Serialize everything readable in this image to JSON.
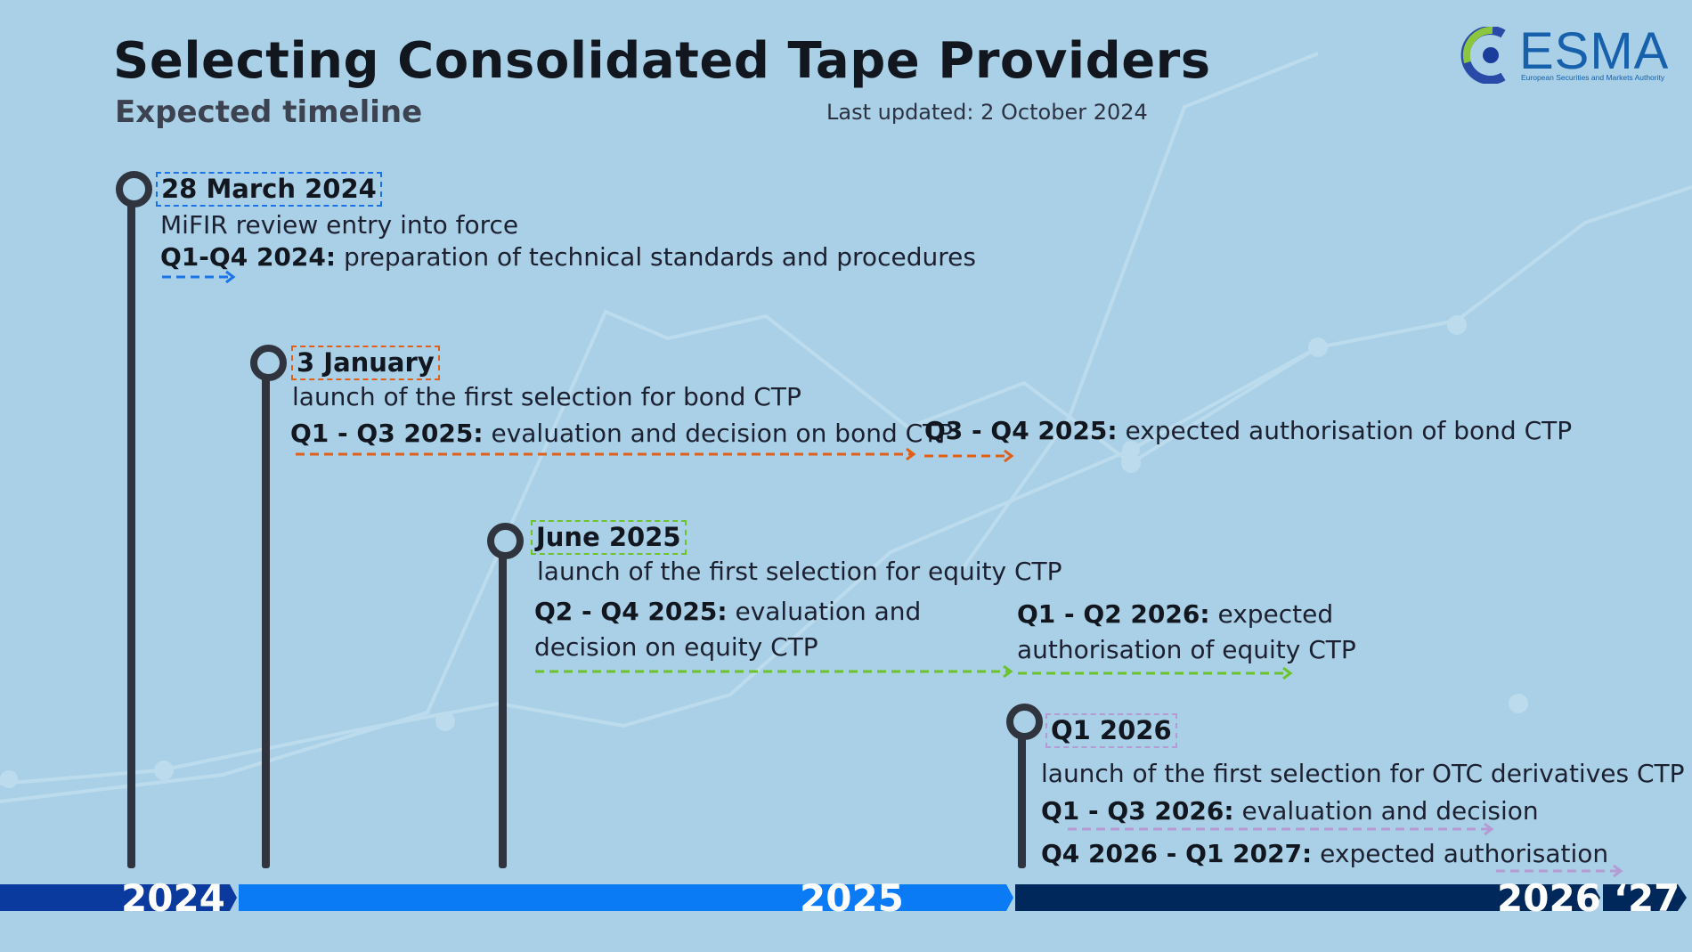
{
  "header": {
    "title": "Selecting Consolidated Tape Providers",
    "subtitle": "Expected timeline",
    "last_updated": "Last updated: 2 October 2024"
  },
  "logo": {
    "name": "ESMA",
    "tagline": "European Securities and Markets Authority"
  },
  "colors": {
    "background": "#a9d0e6",
    "stem": "#30343e",
    "blue": "#1a73e8",
    "orange": "#e0601a",
    "green": "#6cc42a",
    "purple": "#b59ad4",
    "year_2024": "#0b3a9e",
    "year_2025": "#0b7bf5",
    "year_2026": "#00285a"
  },
  "milestones": [
    {
      "date": "28 March 2024",
      "description": "MiFIR review entry into force",
      "phases": [
        {
          "period": "Q1-Q4 2024:",
          "text": " preparation of technical standards and procedures"
        }
      ]
    },
    {
      "date": "3 January",
      "description": "launch of the first selection for bond CTP",
      "phases": [
        {
          "period": "Q1 - Q3 2025:",
          "text": " evaluation and decision on bond CTP"
        },
        {
          "period": "Q3 - Q4 2025:",
          "text": " expected authorisation of bond CTP"
        }
      ]
    },
    {
      "date": "June 2025",
      "description": "launch of the first selection for equity CTP",
      "phases": [
        {
          "period": "Q2 - Q4 2025:",
          "text": " evaluation and",
          "text_line2": "decision on equity CTP"
        },
        {
          "period": "Q1 - Q2 2026:",
          "text": " expected",
          "text_line2": "authorisation of equity CTP"
        }
      ]
    },
    {
      "date": "Q1 2026",
      "description": "launch of the first selection for OTC derivatives CTP",
      "phases": [
        {
          "period": "Q1 - Q3 2026:",
          "text": " evaluation and decision"
        },
        {
          "period": "Q4 2026 - Q1 2027:",
          "text": " expected authorisation"
        }
      ]
    }
  ],
  "years": [
    "2024",
    "2025",
    "2026",
    "‘27"
  ]
}
